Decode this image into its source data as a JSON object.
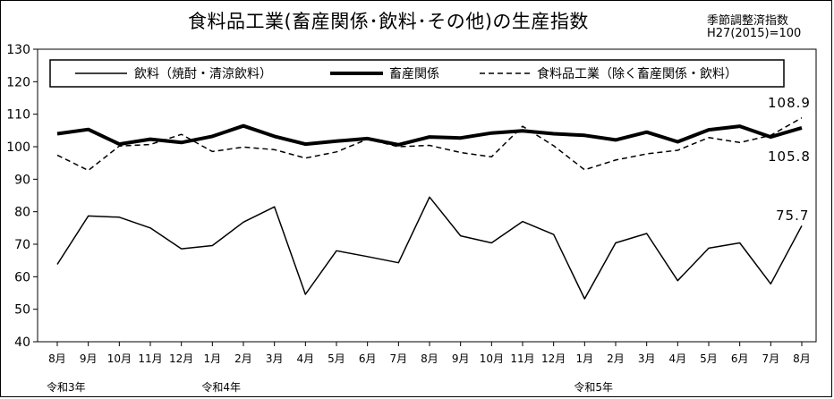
{
  "chart_data": {
    "type": "line",
    "title": "食料品工業(畜産関係･飲料･その他)の生産指数",
    "notes": [
      "季節調整済指数",
      "H27(2015)=100"
    ],
    "ylim": [
      40,
      130
    ],
    "y_ticks": [
      "130",
      "120",
      "110",
      "100",
      "90",
      "80",
      "70",
      "60",
      "50",
      "40"
    ],
    "categories": [
      "8月",
      "9月",
      "10月",
      "11月",
      "12月",
      "1月",
      "2月",
      "3月",
      "4月",
      "5月",
      "6月",
      "7月",
      "8月",
      "9月",
      "10月",
      "11月",
      "12月",
      "1月",
      "2月",
      "3月",
      "4月",
      "5月",
      "6月",
      "7月",
      "8月"
    ],
    "era_labels": [
      {
        "index": 0,
        "text": "令和3年"
      },
      {
        "index": 5,
        "text": "令和4年"
      },
      {
        "index": 17,
        "text": "令和5年"
      }
    ],
    "series": [
      {
        "name": "飲料（焼酎・清涼飲料）",
        "style": "thin-solid",
        "values": [
          63.8,
          78.7,
          78.3,
          75.0,
          68.6,
          69.6,
          76.8,
          81.5,
          54.6,
          68.0,
          66.2,
          64.3,
          84.5,
          72.6,
          70.4,
          77.0,
          73.0,
          53.2,
          70.4,
          73.3,
          58.8,
          68.8,
          70.4,
          57.8,
          75.7
        ]
      },
      {
        "name": "畜産関係",
        "style": "thick-solid",
        "values": [
          104.0,
          105.3,
          100.8,
          102.3,
          101.3,
          103.2,
          106.4,
          103.2,
          100.8,
          101.7,
          102.5,
          100.6,
          103.0,
          102.7,
          104.2,
          104.9,
          104.0,
          103.5,
          102.1,
          104.5,
          101.5,
          105.2,
          106.3,
          103.0,
          105.8
        ]
      },
      {
        "name": "食料品工業（除く畜産関係・飲料）",
        "style": "dashed",
        "values": [
          97.4,
          92.7,
          100.2,
          100.7,
          103.8,
          98.5,
          99.9,
          99.1,
          96.5,
          98.4,
          102.3,
          100.0,
          100.4,
          98.2,
          96.9,
          106.3,
          100.3,
          92.9,
          95.9,
          97.8,
          98.9,
          102.8,
          101.3,
          103.5,
          108.9
        ]
      }
    ],
    "data_labels": [
      {
        "series": 2,
        "index": 24,
        "text": "108.9"
      },
      {
        "series": 1,
        "index": 24,
        "text": "105.8"
      },
      {
        "series": 0,
        "index": 24,
        "text": "75.7"
      }
    ],
    "legend_position": "top",
    "grid": false
  }
}
